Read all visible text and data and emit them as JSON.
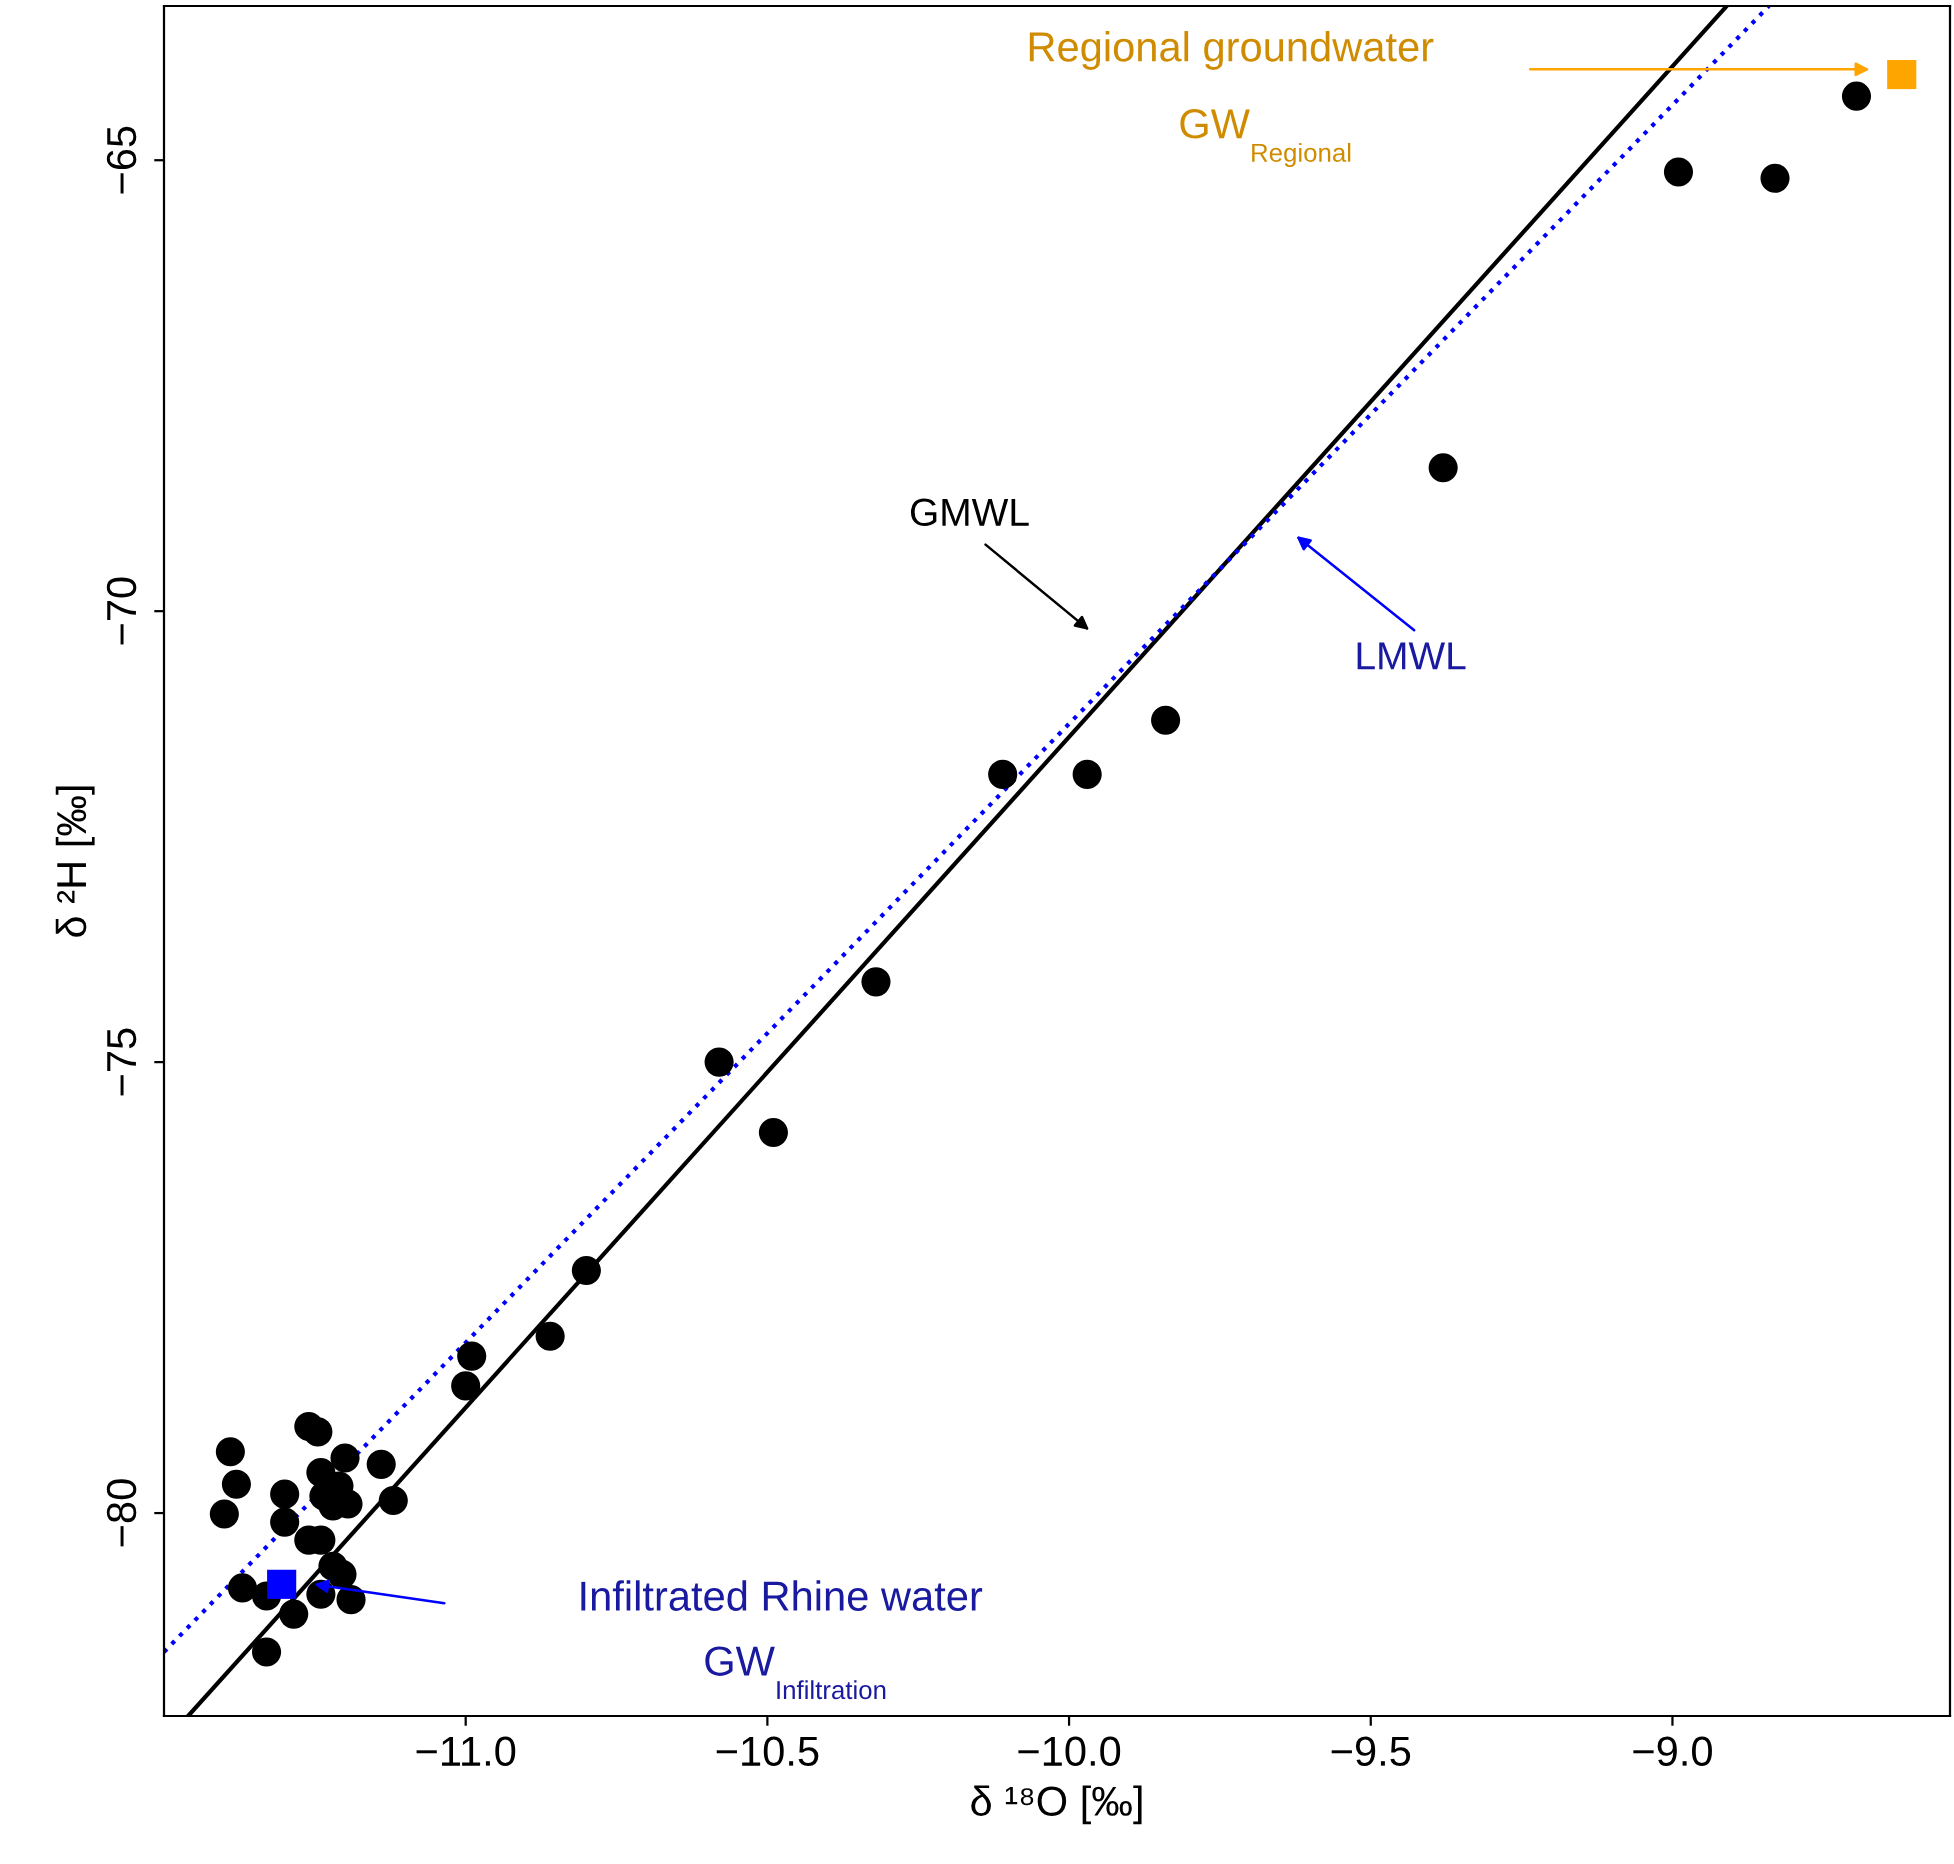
{
  "chart_data": {
    "type": "scatter",
    "xlabel": "δ ¹⁸O [‰]",
    "ylabel": "δ ²H [‰]",
    "xlim": [
      -11.5,
      -8.54
    ],
    "ylim": [
      -82.25,
      -63.29
    ],
    "xticks": [
      {
        "value": -11,
        "label": "−11.0"
      },
      {
        "value": -10.5,
        "label": "−10.5"
      },
      {
        "value": -10,
        "label": "−10.0"
      },
      {
        "value": -9.5,
        "label": "−9.5"
      },
      {
        "value": -9,
        "label": "−9.0"
      }
    ],
    "yticks": [
      {
        "value": -80,
        "label": "−80"
      },
      {
        "value": -75,
        "label": "−75"
      },
      {
        "value": -70,
        "label": "−70"
      },
      {
        "value": -65,
        "label": "−65"
      }
    ],
    "grid": false,
    "legend": false,
    "series": [
      {
        "type": "line",
        "color": "#000000",
        "line_style": "solid",
        "marker": "none",
        "x": [
          -11.46,
          -8.91
        ],
        "values": [
          -82.25,
          -63.29
        ]
      },
      {
        "type": "line",
        "color": "#0000ff",
        "line_style": "dotted",
        "marker": "none",
        "x": [
          -11.5,
          -8.84
        ],
        "values": [
          -81.54,
          -63.29
        ]
      },
      {
        "color": "#000000",
        "marker": "circle",
        "x": [
          -8.695,
          -8.99,
          -8.83,
          -9.38,
          -9.84,
          -9.97,
          -10.11,
          -10.32,
          -10.58,
          -10.49,
          -10.8,
          -10.86,
          -10.99,
          -11.0,
          -11.26,
          -11.245,
          -11.39,
          -11.38,
          -11.4,
          -11.3,
          -11.3,
          -11.14,
          -11.2,
          -11.24,
          -11.21,
          -11.235,
          -11.195,
          -11.22,
          -11.12,
          -11.26,
          -11.24,
          -11.22,
          -11.205,
          -11.37,
          -11.33,
          -11.285,
          -11.24,
          -11.19,
          -11.33
        ],
        "values": [
          -64.29,
          -65.13,
          -65.2,
          -68.41,
          -71.21,
          -71.81,
          -71.81,
          -74.11,
          -75.0,
          -75.78,
          -77.31,
          -78.04,
          -78.26,
          -78.59,
          -79.04,
          -79.1,
          -79.32,
          -79.68,
          -80.01,
          -79.79,
          -80.1,
          -79.46,
          -79.39,
          -79.55,
          -79.7,
          -79.81,
          -79.9,
          -79.92,
          -79.86,
          -80.3,
          -80.3,
          -80.59,
          -80.68,
          -80.83,
          -80.92,
          -81.12,
          -80.9,
          -80.96,
          -81.54
        ]
      },
      {
        "type": "scatter",
        "color": "#ffa500",
        "marker": "square",
        "x": [
          -8.62
        ],
        "values": [
          -64.05
        ]
      },
      {
        "type": "scatter",
        "color": "#0000ff",
        "marker": "square",
        "x": [
          -11.305
        ],
        "values": [
          -80.79
        ]
      }
    ],
    "annotations": [
      "GMWL",
      "LMWL",
      "Regional groundwater",
      "GW$_{Regional}$",
      "Infiltrated Rhine water",
      "GW$_{Infiltration}$"
    ]
  }
}
